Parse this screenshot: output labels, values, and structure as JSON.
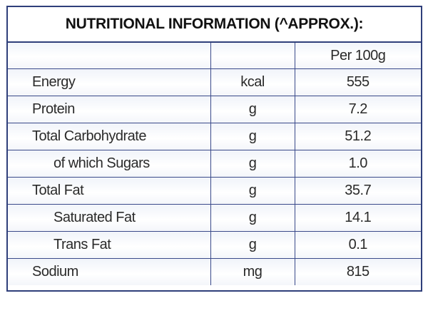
{
  "title": "NUTRITIONAL INFORMATION (^APPROX.):",
  "header": {
    "name": "",
    "unit": "",
    "value": "Per 100g"
  },
  "rows": [
    {
      "name": "Energy",
      "unit": "kcal",
      "value": "555"
    },
    {
      "name": "Protein",
      "unit": "g",
      "value": "7.2"
    },
    {
      "name": "Total Carbohydrate",
      "unit": "g",
      "value": "51.2"
    },
    {
      "name": "of which Sugars",
      "unit": "g",
      "value": "1.0"
    },
    {
      "name": "Total Fat",
      "unit": "g",
      "value": "35.7"
    },
    {
      "name": "Saturated Fat",
      "unit": "g",
      "value": "14.1"
    },
    {
      "name": "Trans Fat",
      "unit": "g",
      "value": "0.1"
    },
    {
      "name": "Sodium",
      "unit": "mg",
      "value": "815"
    }
  ],
  "colors": {
    "border": "#2f3f7a",
    "text": "#2a2a2a"
  }
}
